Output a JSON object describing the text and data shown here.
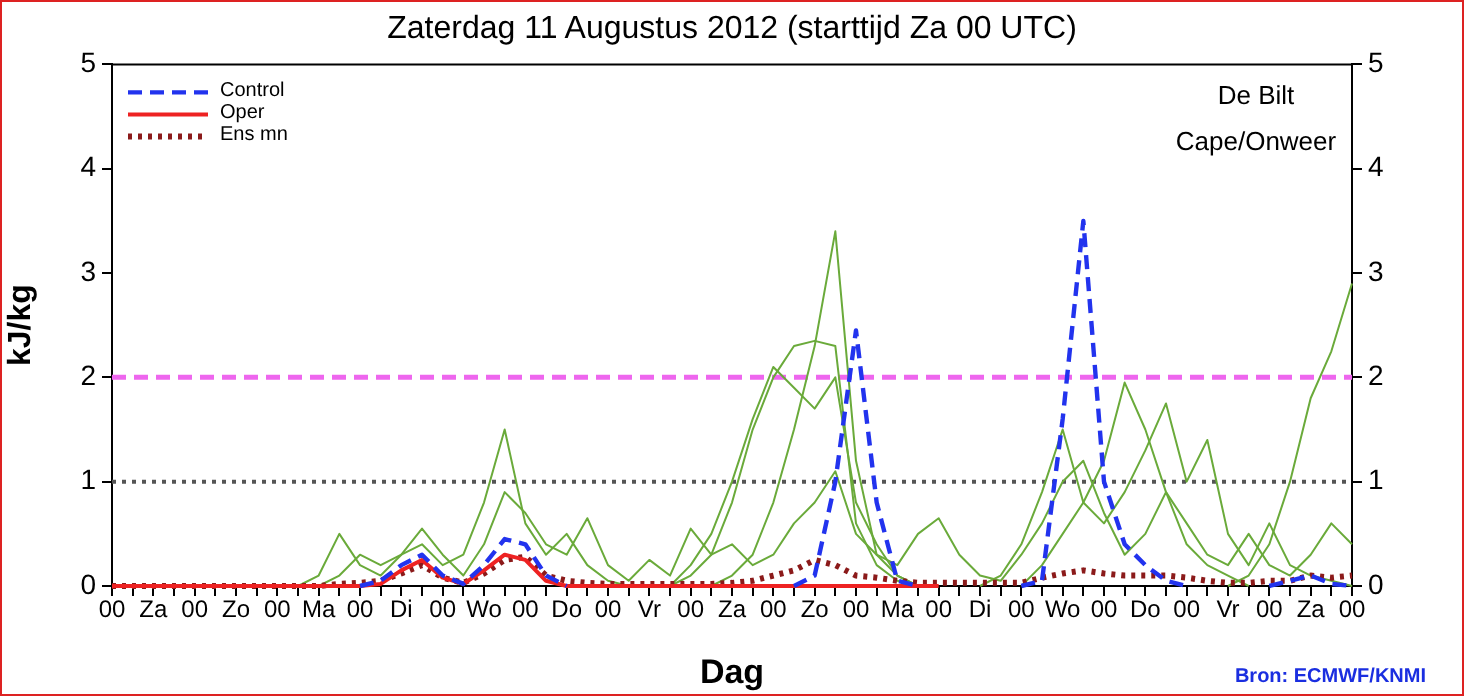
{
  "chart_data": {
    "type": "line",
    "title": "Zaterdag 11 Augustus 2012 (starttijd Za 00 UTC)",
    "xlabel": "Dag",
    "ylabel": "kJ/kg",
    "annotations": [
      "De Bilt",
      "Cape/Onweer",
      "Bron: ECMWF/KNMI"
    ],
    "categories": [
      "00",
      null,
      "Za",
      null,
      "00",
      null,
      "Zo",
      null,
      "00",
      null,
      "Ma",
      null,
      "00",
      null,
      "Di",
      null,
      "00",
      null,
      "Wo",
      null,
      "00",
      null,
      "Do",
      null,
      "00",
      null,
      "Vr",
      null,
      "00",
      null,
      "Za",
      null,
      "00",
      null,
      "Zo",
      null,
      "00",
      null,
      "Ma",
      null,
      "00",
      null,
      "Di",
      null,
      "00",
      null,
      "Wo",
      null,
      "00",
      null,
      "Do",
      null,
      "00",
      null,
      "Vr",
      null,
      "00",
      null,
      "Za",
      null,
      "00"
    ],
    "ylim": [
      0,
      5
    ],
    "yticks": [
      0,
      1,
      2,
      3,
      4,
      5
    ],
    "y2lim": [
      0,
      5
    ],
    "y2ticks": [
      0,
      1,
      2,
      3,
      4,
      5
    ],
    "grid": false,
    "legend": "top left",
    "marker": "none",
    "ref_lines": [
      {
        "axis": "y",
        "value": 2,
        "color": "#ee66ee",
        "line_style": "dashed"
      },
      {
        "axis": "y",
        "value": 1,
        "color": "#555555",
        "line_style": "dotted"
      }
    ],
    "series": [
      {
        "color": "#6aaa3a",
        "line_style": "solid",
        "values": [
          null,
          null,
          null,
          null,
          null,
          null,
          null,
          null,
          null,
          null,
          null,
          null,
          null,
          null,
          null,
          null,
          null,
          null,
          null,
          null,
          null,
          null,
          null,
          null,
          null,
          null,
          null,
          null,
          null,
          0,
          0.1,
          0.3,
          0.8,
          1.5,
          2.3,
          3.4,
          1.2,
          0.3,
          0.1,
          0,
          null,
          null,
          null,
          null,
          null,
          null,
          null,
          null,
          null,
          null,
          null,
          null,
          null,
          null,
          null,
          null,
          null,
          null,
          null,
          null,
          null
        ]
      },
      {
        "color": "#6aaa3a",
        "line_style": "solid",
        "values": [
          null,
          null,
          null,
          null,
          null,
          null,
          null,
          null,
          null,
          null,
          null,
          null,
          null,
          null,
          null,
          null,
          null,
          null,
          null,
          null,
          null,
          null,
          null,
          null,
          null,
          null,
          null,
          0,
          0.1,
          0.3,
          0.8,
          1.5,
          2.0,
          2.3,
          2.35,
          2.3,
          0.6,
          0.2,
          0.05,
          0,
          null,
          null,
          null,
          null,
          null,
          null,
          null,
          null,
          null,
          null,
          null,
          null,
          null,
          null,
          null,
          null,
          null,
          null,
          null,
          null,
          null
        ]
      },
      {
        "color": "#6aaa3a",
        "line_style": "solid",
        "values": [
          null,
          null,
          null,
          null,
          null,
          null,
          null,
          null,
          null,
          null,
          null,
          null,
          null,
          null,
          null,
          null,
          null,
          null,
          null,
          null,
          null,
          null,
          null,
          null,
          null,
          null,
          null,
          0,
          0.2,
          0.5,
          1.0,
          1.6,
          2.1,
          1.9,
          1.7,
          2.0,
          0.8,
          0.4,
          0.1,
          0,
          null,
          null,
          null,
          null,
          null,
          null,
          null,
          null,
          null,
          null,
          null,
          null,
          null,
          null,
          null,
          null,
          null,
          null,
          null,
          null,
          null
        ]
      },
      {
        "color": "#6aaa3a",
        "line_style": "solid",
        "values": [
          null,
          null,
          null,
          null,
          null,
          null,
          null,
          null,
          null,
          null,
          0,
          0.1,
          0.3,
          0.2,
          0.3,
          0.4,
          0.2,
          0.3,
          0.8,
          1.5,
          0.6,
          0.3,
          0.5,
          0.2,
          0.05,
          0,
          null,
          null,
          null,
          null,
          null,
          null,
          null,
          null,
          null,
          null,
          null,
          null,
          null,
          null,
          null,
          null,
          null,
          null,
          null,
          null,
          null,
          null,
          null,
          null,
          null,
          null,
          null,
          null,
          null,
          null,
          null,
          null,
          null,
          null,
          null
        ]
      },
      {
        "color": "#6aaa3a",
        "line_style": "solid",
        "values": [
          null,
          null,
          null,
          null,
          null,
          null,
          null,
          null,
          null,
          null,
          null,
          null,
          null,
          null,
          null,
          null,
          null,
          null,
          null,
          null,
          null,
          null,
          null,
          null,
          null,
          null,
          null,
          null,
          null,
          null,
          null,
          null,
          null,
          null,
          null,
          null,
          null,
          null,
          null,
          null,
          null,
          null,
          0,
          0.1,
          0.4,
          0.9,
          1.5,
          0.8,
          1.2,
          1.95,
          1.5,
          0.9,
          0.4,
          0.2,
          0.1,
          0,
          null,
          null,
          null,
          null,
          null
        ]
      },
      {
        "color": "#6aaa3a",
        "line_style": "solid",
        "values": [
          null,
          null,
          null,
          null,
          null,
          null,
          null,
          null,
          null,
          null,
          null,
          null,
          null,
          null,
          null,
          null,
          null,
          null,
          null,
          null,
          null,
          null,
          null,
          null,
          null,
          null,
          null,
          null,
          null,
          null,
          null,
          null,
          null,
          null,
          null,
          null,
          null,
          null,
          null,
          null,
          null,
          null,
          null,
          null,
          0,
          0.2,
          0.5,
          0.8,
          0.6,
          0.9,
          1.3,
          1.75,
          1.0,
          1.4,
          0.5,
          0.2,
          0.6,
          0.2,
          0.1,
          0.05,
          0
        ]
      },
      {
        "color": "#6aaa3a",
        "line_style": "solid",
        "values": [
          null,
          null,
          null,
          null,
          null,
          null,
          null,
          null,
          null,
          null,
          null,
          null,
          null,
          null,
          null,
          null,
          null,
          null,
          null,
          null,
          null,
          null,
          null,
          null,
          null,
          null,
          null,
          null,
          null,
          null,
          null,
          null,
          null,
          null,
          null,
          null,
          null,
          null,
          null,
          null,
          null,
          null,
          null,
          null,
          null,
          null,
          null,
          null,
          null,
          null,
          null,
          null,
          null,
          null,
          0,
          0.1,
          0.4,
          1.0,
          1.8,
          2.25,
          2.9
        ]
      },
      {
        "color": "#6aaa3a",
        "line_style": "solid",
        "values": [
          null,
          null,
          null,
          null,
          null,
          null,
          null,
          null,
          null,
          0,
          0.1,
          0.5,
          0.2,
          0.1,
          0.3,
          0.55,
          0.3,
          0.1,
          0.4,
          0.9,
          0.7,
          0.4,
          0.3,
          0.65,
          0.2,
          0.05,
          0.25,
          0.1,
          0.55,
          0.3,
          0.4,
          0.2,
          0.3,
          0.6,
          0.8,
          1.1,
          0.5,
          0.3,
          0.2,
          0.5,
          0.65,
          0.3,
          0.1,
          0.05,
          0.3,
          0.6,
          1.0,
          1.2,
          0.7,
          0.3,
          0.5,
          0.9,
          0.6,
          0.3,
          0.2,
          0.5,
          0.2,
          0.1,
          0.3,
          0.6,
          0.4
        ]
      },
      {
        "name": "Ens mn",
        "color": "#8b1a1a",
        "line_style": "dotted",
        "values": [
          0,
          0,
          0,
          0,
          0,
          0,
          0,
          0,
          0,
          0,
          0,
          0.02,
          0.03,
          0.05,
          0.12,
          0.2,
          0.08,
          0.03,
          0.12,
          0.25,
          0.28,
          0.1,
          0.05,
          0.03,
          0.02,
          0.02,
          0.02,
          0.02,
          0.02,
          0.02,
          0.03,
          0.05,
          0.1,
          0.15,
          0.25,
          0.2,
          0.1,
          0.08,
          0.05,
          0.03,
          0.03,
          0.03,
          0.03,
          0.03,
          0.03,
          0.08,
          0.12,
          0.15,
          0.12,
          0.1,
          0.1,
          0.1,
          0.08,
          0.05,
          0.03,
          0.03,
          0.05,
          0.05,
          0.1,
          0.08,
          0.1
        ]
      },
      {
        "name": "Oper",
        "color": "#ee2222",
        "line_style": "solid",
        "values": [
          0,
          0,
          0,
          0,
          0,
          0,
          0,
          0,
          0,
          0,
          0,
          0,
          0,
          0.02,
          0.15,
          0.25,
          0.08,
          0.02,
          0.15,
          0.3,
          0.25,
          0.05,
          0,
          0,
          0,
          0,
          0,
          0,
          0,
          0,
          0,
          0,
          0,
          0,
          0,
          0,
          0,
          0,
          0,
          0,
          0,
          null,
          null,
          null,
          null,
          null,
          null,
          null,
          null,
          null,
          null,
          null,
          null,
          null,
          null,
          null,
          null,
          null,
          null,
          null,
          null
        ]
      },
      {
        "name": "Control",
        "color": "#2233ee",
        "line_style": "dashed",
        "values": [
          null,
          null,
          null,
          null,
          null,
          null,
          null,
          null,
          null,
          null,
          null,
          null,
          0,
          0.05,
          0.2,
          0.3,
          0.1,
          0.02,
          0.2,
          0.45,
          0.4,
          0.1,
          0,
          null,
          null,
          null,
          null,
          null,
          null,
          null,
          null,
          null,
          null,
          0,
          0.1,
          1.0,
          2.45,
          0.8,
          0.05,
          0,
          null,
          null,
          null,
          null,
          0,
          0.05,
          1.6,
          3.5,
          1.0,
          0.4,
          0.2,
          0.05,
          0,
          null,
          null,
          null,
          0,
          0.05,
          0.1,
          0.02,
          0
        ]
      }
    ]
  }
}
